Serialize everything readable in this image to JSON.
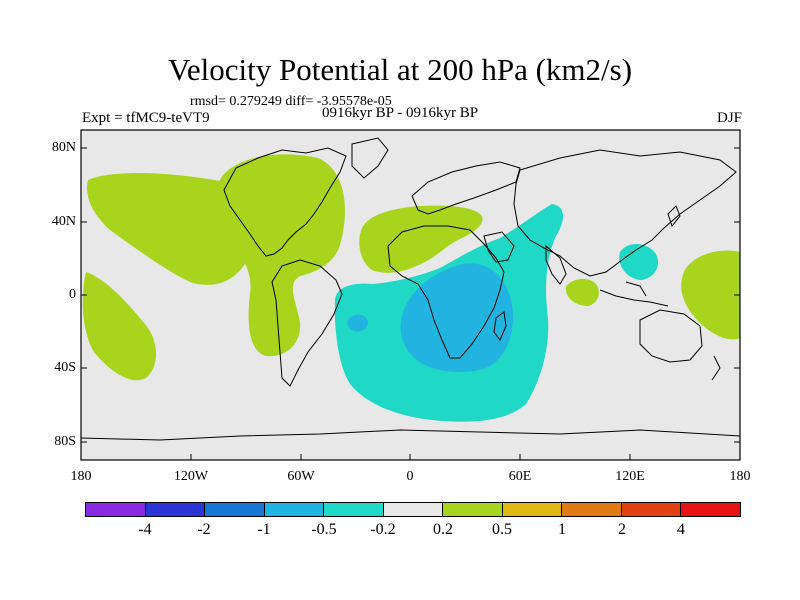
{
  "title": "Velocity Potential at 200 hPa (km2/s)",
  "stats_line": "rmsd= 0.279249 diff= -3.95578e-05",
  "experiment": "Expt = tfMC9-teVT9",
  "period": "0916kyr BP - 0916kyr BP",
  "season": "DJF",
  "lat_ticks": [
    "80N",
    "40N",
    "0",
    "40S",
    "80S"
  ],
  "lon_ticks": [
    "180",
    "120W",
    "60W",
    "0",
    "60E",
    "120E",
    "180"
  ],
  "colorbar": {
    "colors": [
      "#8a2be2",
      "#2b35d6",
      "#1876d6",
      "#21b4e0",
      "#1fd8c6",
      "#e8e8e8",
      "#a8d41e",
      "#e0b814",
      "#e07a14",
      "#e04214",
      "#e81414"
    ],
    "labels": [
      "-4",
      "-2",
      "-1",
      "-0.5",
      "-0.2",
      "0.2",
      "0.5",
      "1",
      "2",
      "4"
    ]
  }
}
